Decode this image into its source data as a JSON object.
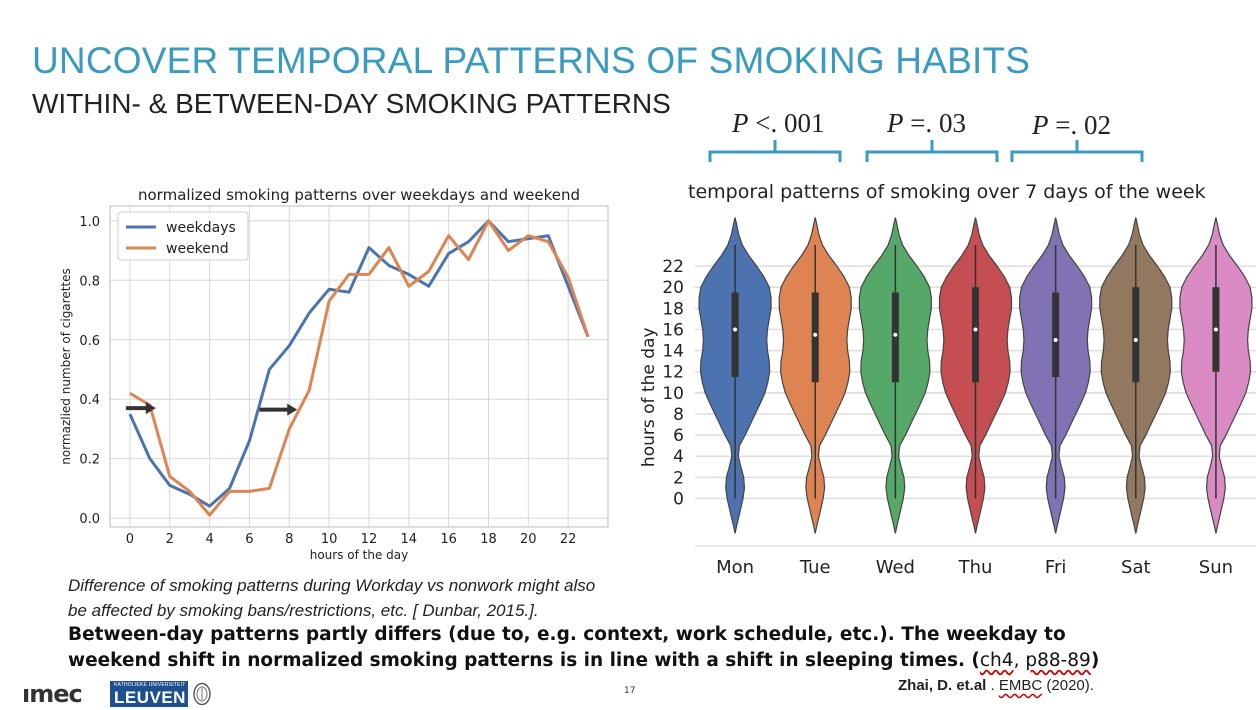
{
  "slide": {
    "title": "UNCOVER TEMPORAL PATTERNS OF SMOKING HABITS",
    "subtitle": "WITHIN- & BETWEEN-DAY SMOKING PATTERNS",
    "pvalues": [
      {
        "label": "P",
        "value": "<. 001"
      },
      {
        "label": "P",
        "value": "=. 03"
      },
      {
        "label": "P",
        "value": "=. 02"
      }
    ],
    "note_line1": "Difference of smoking patterns during Workday vs nonwork might also",
    "note_line2": "be affected by smoking bans/restrictions, etc. [ Dunbar, 2015.].",
    "finding_line1": "Between-day patterns partly differs (due to, e.g. context, work schedule, etc.). The weekday to",
    "finding_line2_start": "weekend shift in normalized smoking patterns is in line with a shift in sleeping times. (",
    "finding_ref1": "ch4",
    "finding_sep": ", ",
    "finding_ref2": "p88-89",
    "finding_end": ")",
    "citation_author": "Zhai, D. et.al",
    "citation_sep": " . ",
    "citation_venue": "EMBC",
    "citation_year": " (2020).",
    "page_number": "17",
    "logo_imec": "ımec",
    "logo_leuven_small": "KATHOLIEKE UNIVERSITEIT",
    "logo_leuven_big": "LEUVEN"
  },
  "chart_data": [
    {
      "type": "line",
      "title": "normalized smoking patterns over weekdays and weekend",
      "xlabel": "hours of the day",
      "ylabel": "normazlied number of cigarettes",
      "xlim": [
        -1,
        24
      ],
      "ylim": [
        -0.03,
        1.05
      ],
      "xticks": [
        0,
        2,
        4,
        6,
        8,
        10,
        12,
        14,
        16,
        18,
        20,
        22
      ],
      "yticks": [
        "0.0",
        "0.2",
        "0.4",
        "0.6",
        "0.8",
        "1.0"
      ],
      "grid": true,
      "legend": "top-left",
      "x": [
        0,
        1,
        2,
        3,
        4,
        5,
        6,
        7,
        8,
        9,
        10,
        11,
        12,
        13,
        14,
        15,
        16,
        17,
        18,
        19,
        20,
        21,
        22,
        23
      ],
      "series": [
        {
          "name": "weekdays",
          "color": "#4c72b0",
          "values": [
            0.35,
            0.2,
            0.11,
            0.08,
            0.04,
            0.1,
            0.26,
            0.5,
            0.58,
            0.69,
            0.77,
            0.76,
            0.91,
            0.85,
            0.82,
            0.78,
            0.89,
            0.93,
            1.0,
            0.93,
            0.94,
            0.95,
            0.78,
            0.61
          ]
        },
        {
          "name": "weekend",
          "color": "#dd8452",
          "values": [
            0.42,
            0.38,
            0.14,
            0.09,
            0.01,
            0.09,
            0.09,
            0.1,
            0.3,
            0.43,
            0.73,
            0.82,
            0.82,
            0.91,
            0.78,
            0.83,
            0.95,
            0.87,
            1.0,
            0.9,
            0.95,
            0.93,
            0.81,
            0.61
          ]
        }
      ],
      "arrows": [
        {
          "from": [
            -0.2,
            0.37
          ],
          "to": [
            1.3,
            0.37
          ],
          "color": "#333333"
        },
        {
          "from": [
            6.5,
            0.365
          ],
          "to": [
            8.4,
            0.365
          ],
          "color": "#333333"
        }
      ]
    },
    {
      "type": "violin",
      "title": "temporal patterns of smoking over 7 days of the week",
      "xlabel": "",
      "ylabel": "hours of the day",
      "ylim": [
        -4.5,
        27.5
      ],
      "yticks": [
        0,
        2,
        4,
        6,
        8,
        10,
        12,
        14,
        16,
        18,
        20,
        22
      ],
      "grid": true,
      "categories": [
        "Mon",
        "Tue",
        "Wed",
        "Thu",
        "Fri",
        "Sat",
        "Sun"
      ],
      "colors": [
        "#4c72b0",
        "#dd8452",
        "#55a868",
        "#c44e52",
        "#8172b3",
        "#937860",
        "#da8bc3"
      ],
      "quartiles": [
        [
          11.5,
          16,
          19.5
        ],
        [
          11,
          15.5,
          19.5
        ],
        [
          11,
          15.5,
          19.5
        ],
        [
          11,
          16,
          20
        ],
        [
          11.5,
          15,
          19.5
        ],
        [
          11,
          15,
          20
        ],
        [
          12,
          16,
          20
        ]
      ],
      "whiskers": [
        [
          0,
          24
        ],
        [
          0,
          24
        ],
        [
          0,
          24
        ],
        [
          0,
          24
        ],
        [
          0,
          24
        ],
        [
          0,
          24
        ],
        [
          0,
          24
        ]
      ]
    }
  ]
}
